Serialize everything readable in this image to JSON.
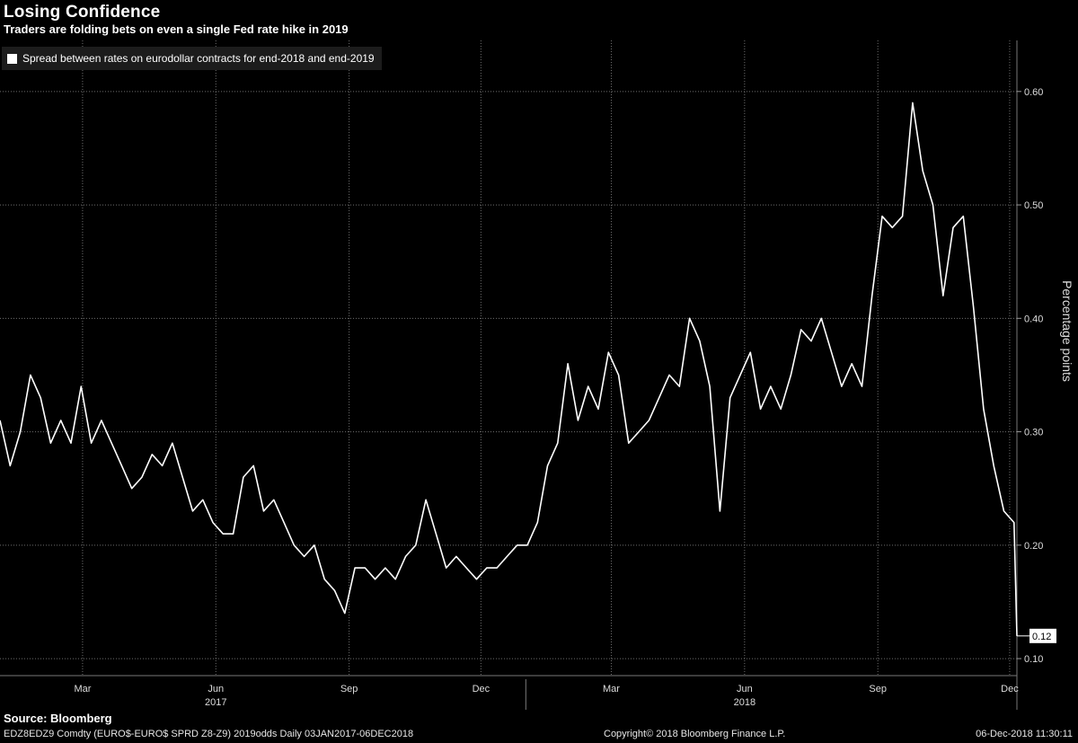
{
  "header": {
    "title": "Losing Confidence",
    "subtitle": "Traders are folding bets on even a single Fed rate hike in 2019"
  },
  "legend": {
    "label": "Spread between rates on eurodollar contracts for end-2018 and end-2019",
    "color": "#ffffff"
  },
  "footer": {
    "source": "Source: Bloomberg",
    "ticker": "EDZ8EDZ9 Comdty (EURO$-EURO$ SPRD  Z8-Z9) 2019odds  Daily 03JAN2017-06DEC2018",
    "copyright": "Copyright© 2018 Bloomberg Finance L.P.",
    "timestamp": "06-Dec-2018 11:30:11"
  },
  "colors": {
    "background": "#000000",
    "line": "#ffffff",
    "grid": "#6e6e6e",
    "last_value_box": "#ffffff"
  },
  "chart_data": {
    "type": "line",
    "title": "Losing Confidence",
    "subtitle": "Traders are folding bets on even a single Fed rate hike in 2019",
    "ylabel": "Percentage points",
    "xlabel": "",
    "ylim": [
      0.085,
      0.645
    ],
    "yticks": [
      0.1,
      0.2,
      0.3,
      0.4,
      0.5,
      0.6
    ],
    "ytick_labels": [
      "0.10",
      "0.20",
      "0.30",
      "0.40",
      "0.50",
      "0.60"
    ],
    "xlim": [
      "2017-01-03",
      "2018-12-06"
    ],
    "xticks": [
      {
        "label": "Mar",
        "date": "2017-03-01"
      },
      {
        "label": "Jun",
        "date": "2017-06-01"
      },
      {
        "label": "Sep",
        "date": "2017-09-01"
      },
      {
        "label": "Dec",
        "date": "2017-12-01"
      },
      {
        "label": "Mar",
        "date": "2018-03-01"
      },
      {
        "label": "Jun",
        "date": "2018-06-01"
      },
      {
        "label": "Sep",
        "date": "2018-09-01"
      },
      {
        "label": "Dec",
        "date": "2018-12-01"
      }
    ],
    "year_labels": [
      {
        "label": "2017",
        "date": "2017-06-01"
      },
      {
        "label": "2018",
        "date": "2018-06-01"
      }
    ],
    "year_divider": "2018-01-01",
    "grid": true,
    "legend_position": "top-left",
    "last_value": 0.12,
    "last_value_label": "0.12",
    "series": [
      {
        "name": "Spread between rates on eurodollar contracts for end-2018 and end-2019",
        "x": [
          "2017-01-03",
          "2017-01-10",
          "2017-01-17",
          "2017-01-24",
          "2017-01-31",
          "2017-02-07",
          "2017-02-14",
          "2017-02-21",
          "2017-02-28",
          "2017-03-07",
          "2017-03-14",
          "2017-03-21",
          "2017-03-28",
          "2017-04-04",
          "2017-04-11",
          "2017-04-18",
          "2017-04-25",
          "2017-05-02",
          "2017-05-09",
          "2017-05-16",
          "2017-05-23",
          "2017-05-30",
          "2017-06-06",
          "2017-06-13",
          "2017-06-20",
          "2017-06-27",
          "2017-07-04",
          "2017-07-11",
          "2017-07-18",
          "2017-07-25",
          "2017-08-01",
          "2017-08-08",
          "2017-08-15",
          "2017-08-22",
          "2017-08-29",
          "2017-09-05",
          "2017-09-12",
          "2017-09-19",
          "2017-09-26",
          "2017-10-03",
          "2017-10-10",
          "2017-10-17",
          "2017-10-24",
          "2017-10-31",
          "2017-11-07",
          "2017-11-14",
          "2017-11-21",
          "2017-11-28",
          "2017-12-05",
          "2017-12-12",
          "2017-12-19",
          "2017-12-26",
          "2018-01-02",
          "2018-01-09",
          "2018-01-16",
          "2018-01-23",
          "2018-01-30",
          "2018-02-06",
          "2018-02-13",
          "2018-02-20",
          "2018-02-27",
          "2018-03-06",
          "2018-03-13",
          "2018-03-20",
          "2018-03-27",
          "2018-04-03",
          "2018-04-10",
          "2018-04-17",
          "2018-04-24",
          "2018-05-01",
          "2018-05-08",
          "2018-05-15",
          "2018-05-22",
          "2018-05-29",
          "2018-06-05",
          "2018-06-12",
          "2018-06-19",
          "2018-06-26",
          "2018-07-03",
          "2018-07-10",
          "2018-07-17",
          "2018-07-24",
          "2018-07-31",
          "2018-08-07",
          "2018-08-14",
          "2018-08-21",
          "2018-08-28",
          "2018-09-04",
          "2018-09-11",
          "2018-09-18",
          "2018-09-25",
          "2018-10-02",
          "2018-10-09",
          "2018-10-16",
          "2018-10-23",
          "2018-10-30",
          "2018-11-06",
          "2018-11-13",
          "2018-11-20",
          "2018-11-27",
          "2018-12-04",
          "2018-12-06"
        ],
        "values": [
          0.31,
          0.27,
          0.3,
          0.35,
          0.33,
          0.29,
          0.31,
          0.29,
          0.34,
          0.29,
          0.31,
          0.29,
          0.27,
          0.25,
          0.26,
          0.28,
          0.27,
          0.29,
          0.26,
          0.23,
          0.24,
          0.22,
          0.21,
          0.21,
          0.26,
          0.27,
          0.23,
          0.24,
          0.22,
          0.2,
          0.19,
          0.2,
          0.17,
          0.16,
          0.14,
          0.18,
          0.18,
          0.17,
          0.18,
          0.17,
          0.19,
          0.2,
          0.24,
          0.21,
          0.18,
          0.19,
          0.18,
          0.17,
          0.18,
          0.18,
          0.19,
          0.2,
          0.2,
          0.22,
          0.27,
          0.29,
          0.36,
          0.31,
          0.34,
          0.32,
          0.37,
          0.35,
          0.29,
          0.3,
          0.31,
          0.33,
          0.35,
          0.34,
          0.4,
          0.38,
          0.34,
          0.23,
          0.33,
          0.35,
          0.37,
          0.32,
          0.34,
          0.32,
          0.35,
          0.39,
          0.38,
          0.4,
          0.37,
          0.34,
          0.36,
          0.34,
          0.42,
          0.49,
          0.48,
          0.49,
          0.59,
          0.53,
          0.5,
          0.42,
          0.48,
          0.49,
          0.41,
          0.32,
          0.27,
          0.23,
          0.22,
          0.12
        ]
      }
    ]
  }
}
